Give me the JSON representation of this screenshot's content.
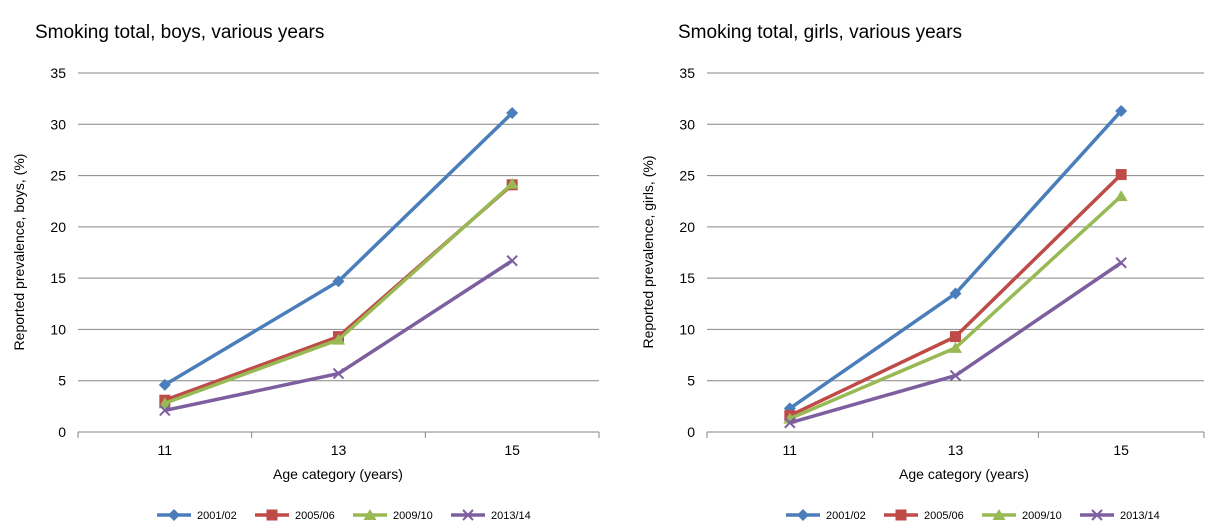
{
  "chart_data": [
    {
      "type": "line",
      "title": "Smoking total, boys, various years",
      "xlabel": "Age category (years)",
      "ylabel": "Reported prevalence, boys, (%)",
      "categories": [
        "11",
        "13",
        "15"
      ],
      "ylim": [
        0,
        35
      ],
      "yticks": [
        "0",
        "5",
        "10",
        "15",
        "20",
        "25",
        "30",
        "35"
      ],
      "grid": true,
      "legend_position": "bottom",
      "series": [
        {
          "name": "2001/02",
          "values": [
            4.6,
            14.7,
            31.1
          ],
          "color": "#4a7ebb",
          "marker": "diamond"
        },
        {
          "name": "2005/06",
          "values": [
            3.1,
            9.3,
            24.1
          ],
          "color": "#be4b48",
          "marker": "square"
        },
        {
          "name": "2009/10",
          "values": [
            2.8,
            9.0,
            24.2
          ],
          "color": "#98b954",
          "marker": "triangle"
        },
        {
          "name": "2013/14",
          "values": [
            2.1,
            5.7,
            16.7
          ],
          "color": "#7d5fa0",
          "marker": "x"
        }
      ]
    },
    {
      "type": "line",
      "title": "Smoking total, girls, various years",
      "xlabel": "Age category (years)",
      "ylabel": "Reported prevalence, girls, (%)",
      "categories": [
        "11",
        "13",
        "15"
      ],
      "ylim": [
        0,
        35
      ],
      "yticks": [
        "0",
        "5",
        "10",
        "15",
        "20",
        "25",
        "30",
        "35"
      ],
      "grid": true,
      "legend_position": "bottom",
      "series": [
        {
          "name": "2001/02",
          "values": [
            2.3,
            13.5,
            31.3
          ],
          "color": "#4a7ebb",
          "marker": "diamond"
        },
        {
          "name": "2005/06",
          "values": [
            1.6,
            9.3,
            25.1
          ],
          "color": "#be4b48",
          "marker": "square"
        },
        {
          "name": "2009/10",
          "values": [
            1.3,
            8.2,
            23.0
          ],
          "color": "#98b954",
          "marker": "triangle"
        },
        {
          "name": "2013/14",
          "values": [
            0.9,
            5.5,
            16.5
          ],
          "color": "#7d5fa0",
          "marker": "x"
        }
      ]
    }
  ]
}
